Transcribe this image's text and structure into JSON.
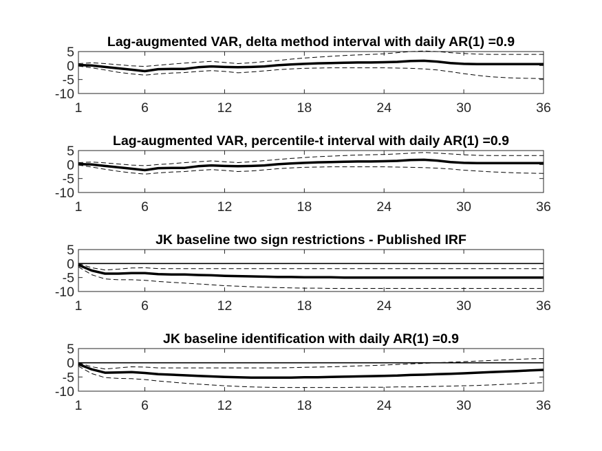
{
  "chart_data": [
    {
      "type": "line",
      "title": "Lag-augmented VAR, delta method interval with daily AR(1) =0.9",
      "x": [
        1,
        2,
        3,
        4,
        5,
        6,
        7,
        8,
        9,
        10,
        11,
        12,
        13,
        14,
        15,
        16,
        17,
        18,
        19,
        20,
        21,
        22,
        23,
        24,
        25,
        26,
        27,
        28,
        29,
        30,
        31,
        32,
        33,
        34,
        35,
        36
      ],
      "xticks": [
        1,
        6,
        12,
        18,
        24,
        30,
        36
      ],
      "yticks": [
        5,
        0,
        -5,
        -10
      ],
      "xlim": [
        1,
        36
      ],
      "ylim": [
        -10,
        5
      ],
      "grid": false,
      "zero_line": false,
      "series": [
        {
          "role": "estimate",
          "values": [
            0.2,
            0,
            -0.5,
            -1,
            -1.5,
            -2,
            -1.3,
            -1.2,
            -1.2,
            -0.6,
            -0.3,
            -0.5,
            -0.6,
            -0.5,
            -0.3,
            0.1,
            0.4,
            0.6,
            0.8,
            0.9,
            1.0,
            1.1,
            1.1,
            1.2,
            1.3,
            1.6,
            1.7,
            1.4,
            0.9,
            0.6,
            0.5,
            0.5,
            0.5,
            0.5,
            0.5,
            0.5
          ]
        },
        {
          "role": "upper",
          "values": [
            0.7,
            1,
            0.7,
            0.3,
            -0.1,
            -0.3,
            0.1,
            0.5,
            0.9,
            1.2,
            1.5,
            1.1,
            0.7,
            1.0,
            1.4,
            1.8,
            2.3,
            2.7,
            3.0,
            3.3,
            3.6,
            3.8,
            4.0,
            4.2,
            4.6,
            5.0,
            5.2,
            5.0,
            4.6,
            4.3,
            4.1,
            4.0,
            4.0,
            4.0,
            4.0,
            4.0
          ]
        },
        {
          "role": "lower",
          "values": [
            -0.2,
            -0.8,
            -1.6,
            -2.4,
            -3.0,
            -3.4,
            -3.0,
            -2.7,
            -2.5,
            -2.1,
            -1.8,
            -2.1,
            -2.6,
            -2.3,
            -1.9,
            -1.5,
            -1.2,
            -1.0,
            -0.9,
            -0.8,
            -0.8,
            -0.8,
            -0.8,
            -0.8,
            -0.9,
            -1.0,
            -1.2,
            -1.6,
            -2.2,
            -2.9,
            -3.5,
            -4.0,
            -4.3,
            -4.5,
            -4.6,
            -4.7
          ]
        }
      ]
    },
    {
      "type": "line",
      "title": "Lag-augmented VAR, percentile-t interval with daily AR(1) =0.9",
      "x": [
        1,
        2,
        3,
        4,
        5,
        6,
        7,
        8,
        9,
        10,
        11,
        12,
        13,
        14,
        15,
        16,
        17,
        18,
        19,
        20,
        21,
        22,
        23,
        24,
        25,
        26,
        27,
        28,
        29,
        30,
        31,
        32,
        33,
        34,
        35,
        36
      ],
      "xticks": [
        1,
        6,
        12,
        18,
        24,
        30,
        36
      ],
      "yticks": [
        5,
        0,
        -5,
        -10
      ],
      "xlim": [
        1,
        36
      ],
      "ylim": [
        -10,
        5
      ],
      "grid": false,
      "zero_line": false,
      "series": [
        {
          "role": "estimate",
          "values": [
            0.2,
            0,
            -0.5,
            -1,
            -1.5,
            -2,
            -1.3,
            -1.2,
            -1.2,
            -0.6,
            -0.3,
            -0.5,
            -0.6,
            -0.5,
            -0.3,
            0.1,
            0.4,
            0.6,
            0.8,
            0.9,
            1.0,
            1.1,
            1.1,
            1.2,
            1.3,
            1.6,
            1.7,
            1.4,
            0.9,
            0.6,
            0.5,
            0.5,
            0.5,
            0.5,
            0.5,
            0.5
          ]
        },
        {
          "role": "upper",
          "values": [
            0.7,
            0.9,
            0.6,
            0.2,
            -0.2,
            -0.4,
            0.0,
            0.3,
            0.7,
            1.0,
            1.3,
            1.0,
            0.7,
            1.0,
            1.4,
            1.8,
            2.2,
            2.5,
            2.8,
            3.0,
            3.2,
            3.4,
            3.5,
            3.6,
            3.8,
            4.1,
            4.3,
            4.1,
            3.8,
            3.5,
            3.3,
            3.2,
            3.2,
            3.2,
            3.2,
            3.2
          ]
        },
        {
          "role": "lower",
          "values": [
            -0.2,
            -0.9,
            -1.7,
            -2.4,
            -3.0,
            -3.4,
            -3.0,
            -2.7,
            -2.5,
            -2.1,
            -1.8,
            -2.1,
            -2.5,
            -2.3,
            -1.9,
            -1.5,
            -1.2,
            -1.0,
            -0.9,
            -0.8,
            -0.8,
            -0.8,
            -0.8,
            -0.8,
            -0.9,
            -1.0,
            -1.1,
            -1.3,
            -1.6,
            -2.0,
            -2.3,
            -2.6,
            -2.8,
            -3.0,
            -3.1,
            -3.2
          ]
        }
      ]
    },
    {
      "type": "line",
      "title": "JK baseline two sign restrictions - Published IRF",
      "x": [
        1,
        2,
        3,
        4,
        5,
        6,
        7,
        8,
        9,
        10,
        11,
        12,
        13,
        14,
        15,
        16,
        17,
        18,
        19,
        20,
        21,
        22,
        23,
        24,
        25,
        26,
        27,
        28,
        29,
        30,
        31,
        32,
        33,
        34,
        35,
        36
      ],
      "xticks": [
        1,
        6,
        12,
        18,
        24,
        30,
        36
      ],
      "yticks": [
        5,
        0,
        -5,
        -10
      ],
      "xlim": [
        1,
        36
      ],
      "ylim": [
        -10,
        5
      ],
      "grid": false,
      "zero_line": true,
      "series": [
        {
          "role": "estimate",
          "values": [
            -0.5,
            -2.5,
            -3.6,
            -3.6,
            -3.4,
            -3.4,
            -3.8,
            -3.9,
            -3.9,
            -4.1,
            -4.2,
            -4.4,
            -4.5,
            -4.6,
            -4.7,
            -4.8,
            -4.8,
            -4.9,
            -4.9,
            -4.9,
            -5.0,
            -5.0,
            -5.0,
            -5.0,
            -5.0,
            -5.0,
            -5.0,
            -5.0,
            -5.0,
            -5.0,
            -5.0,
            -5.0,
            -5.0,
            -5.0,
            -5.0,
            -5.0
          ]
        },
        {
          "role": "upper",
          "values": [
            0,
            -1.5,
            -2.3,
            -2.0,
            -1.6,
            -1.5,
            -1.8,
            -1.8,
            -1.8,
            -1.8,
            -1.8,
            -1.8,
            -1.8,
            -1.8,
            -1.8,
            -1.8,
            -1.8,
            -1.8,
            -1.8,
            -1.8,
            -1.8,
            -1.8,
            -1.8,
            -1.8,
            -1.8,
            -1.8,
            -1.8,
            -1.8,
            -1.8,
            -1.8,
            -1.8,
            -1.8,
            -1.8,
            -1.8,
            -1.8,
            -1.8
          ]
        },
        {
          "role": "lower",
          "values": [
            -1.2,
            -4.0,
            -5.5,
            -5.8,
            -5.8,
            -6.0,
            -6.4,
            -6.7,
            -7.0,
            -7.3,
            -7.6,
            -7.9,
            -8.1,
            -8.3,
            -8.5,
            -8.6,
            -8.7,
            -8.8,
            -8.8,
            -8.9,
            -8.9,
            -8.9,
            -8.9,
            -8.9,
            -8.9,
            -8.9,
            -8.9,
            -8.9,
            -8.9,
            -8.9,
            -8.9,
            -8.9,
            -8.9,
            -8.9,
            -8.9,
            -8.9
          ]
        }
      ]
    },
    {
      "type": "line",
      "title": "JK baseline identification with daily AR(1) =0.9",
      "x": [
        1,
        2,
        3,
        4,
        5,
        6,
        7,
        8,
        9,
        10,
        11,
        12,
        13,
        14,
        15,
        16,
        17,
        18,
        19,
        20,
        21,
        22,
        23,
        24,
        25,
        26,
        27,
        28,
        29,
        30,
        31,
        32,
        33,
        34,
        35,
        36
      ],
      "xticks": [
        1,
        6,
        12,
        18,
        24,
        30,
        36
      ],
      "yticks": [
        5,
        0,
        -5,
        -10
      ],
      "xlim": [
        1,
        36
      ],
      "ylim": [
        -10,
        5
      ],
      "grid": false,
      "zero_line": true,
      "series": [
        {
          "role": "estimate",
          "values": [
            -0.5,
            -2.3,
            -3.5,
            -3.4,
            -3.3,
            -3.6,
            -4.0,
            -4.2,
            -4.4,
            -4.6,
            -4.8,
            -5.0,
            -5.1,
            -5.2,
            -5.2,
            -5.2,
            -5.2,
            -5.1,
            -5.1,
            -5.0,
            -4.9,
            -4.8,
            -4.7,
            -4.6,
            -4.5,
            -4.3,
            -4.2,
            -4.0,
            -3.9,
            -3.7,
            -3.5,
            -3.3,
            -3.1,
            -2.9,
            -2.7,
            -2.5
          ]
        },
        {
          "role": "upper",
          "values": [
            0,
            -1.4,
            -2.2,
            -1.8,
            -1.4,
            -1.5,
            -1.8,
            -1.8,
            -1.8,
            -1.8,
            -1.8,
            -1.8,
            -1.8,
            -1.8,
            -1.8,
            -1.8,
            -1.7,
            -1.6,
            -1.5,
            -1.4,
            -1.3,
            -1.1,
            -1.0,
            -0.8,
            -0.6,
            -0.4,
            -0.2,
            0.0,
            0.2,
            0.4,
            0.6,
            0.8,
            1.0,
            1.2,
            1.4,
            1.5
          ]
        },
        {
          "role": "lower",
          "values": [
            -1.2,
            -3.8,
            -5.2,
            -5.5,
            -5.6,
            -5.9,
            -6.4,
            -6.8,
            -7.2,
            -7.5,
            -7.8,
            -8.1,
            -8.3,
            -8.5,
            -8.6,
            -8.7,
            -8.7,
            -8.7,
            -8.7,
            -8.7,
            -8.7,
            -8.6,
            -8.6,
            -8.6,
            -8.5,
            -8.5,
            -8.4,
            -8.3,
            -8.2,
            -8.1,
            -8.0,
            -7.8,
            -7.6,
            -7.4,
            -7.2,
            -7.0
          ]
        }
      ]
    }
  ]
}
